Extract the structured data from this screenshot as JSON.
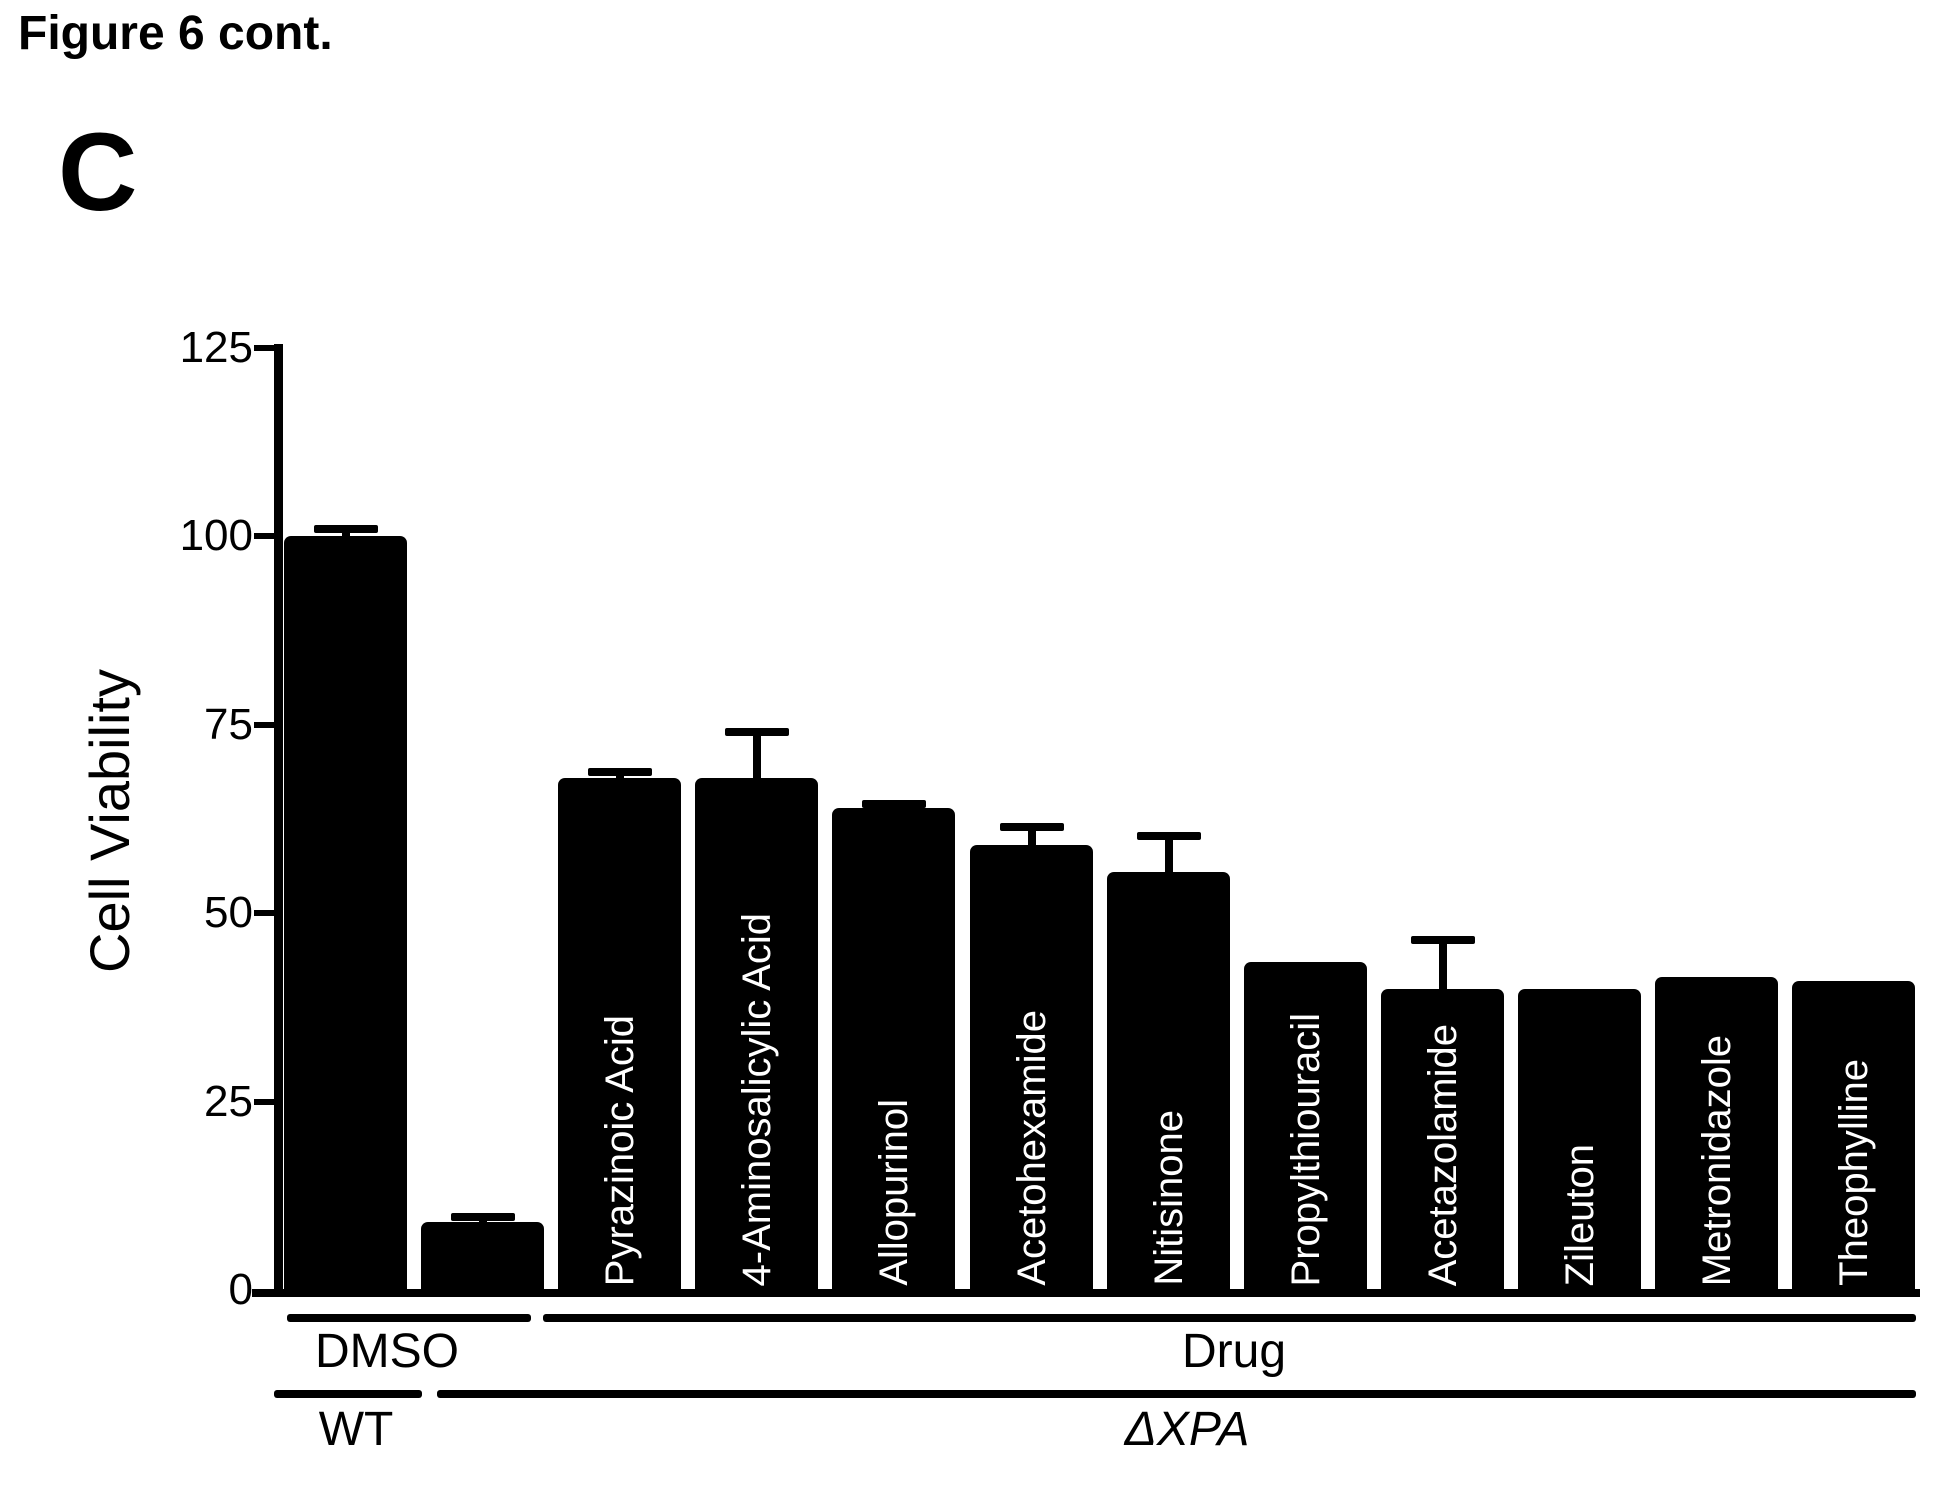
{
  "figure": {
    "title": "Figure 6 cont.",
    "panel_label": "C"
  },
  "chart_data": {
    "type": "bar",
    "title": "",
    "xlabel": "",
    "ylabel": "Cell Viability",
    "ylim": [
      0,
      125
    ],
    "yticks": [
      0,
      25,
      50,
      75,
      100,
      125
    ],
    "grid": false,
    "legend": null,
    "error_direction": "up",
    "colors": {
      "bar": "#000000",
      "bar_label_text": "#ffffff",
      "axis": "#000000",
      "background": "#ffffff"
    },
    "categories": [
      "WT + DMSO",
      "ΔXPA + DMSO",
      "Pyrazinoic Acid",
      "4-Aminosalicylic Acid",
      "Allopurinol",
      "Acetohexamide",
      "Nitisinone",
      "Propylthiouracil",
      "Acetazolamide",
      "Zileuton",
      "Metronidazole",
      "Theophylline"
    ],
    "bars": [
      {
        "bar_label": "",
        "value": 100,
        "error_up": 1
      },
      {
        "bar_label": "",
        "value": 9,
        "error_up": 0.7
      },
      {
        "bar_label": "Pyrazinoic Acid",
        "value": 68,
        "error_up": 0.8
      },
      {
        "bar_label": "4-Aminosalicylic Acid",
        "value": 68,
        "error_up": 6
      },
      {
        "bar_label": "Allopurinol",
        "value": 64,
        "error_up": 0.5
      },
      {
        "bar_label": "Acetohexamide",
        "value": 59,
        "error_up": 2.5
      },
      {
        "bar_label": "Nitisinone",
        "value": 55.5,
        "error_up": 4.8
      },
      {
        "bar_label": "Propylthiouracil",
        "value": 43.5,
        "error_up": 0
      },
      {
        "bar_label": "Acetazolamide",
        "value": 40,
        "error_up": 6.5
      },
      {
        "bar_label": "Zileuton",
        "value": 40,
        "error_up": 0
      },
      {
        "bar_label": "Metronidazole",
        "value": 41.5,
        "error_up": 0
      },
      {
        "bar_label": "Theophylline",
        "value": 41,
        "error_up": 0
      }
    ],
    "group_rows": [
      {
        "groups": [
          {
            "label": "DMSO",
            "from_bar": 0,
            "to_bar": 1,
            "italic": false
          },
          {
            "label": "Drug",
            "from_bar": 2,
            "to_bar": 11,
            "italic": false
          }
        ]
      },
      {
        "groups": [
          {
            "label": "WT",
            "from_bar": 0,
            "to_bar": 0,
            "italic": false
          },
          {
            "label": "ΔXPA",
            "from_bar": 1,
            "to_bar": 11,
            "italic": true
          }
        ]
      }
    ]
  }
}
